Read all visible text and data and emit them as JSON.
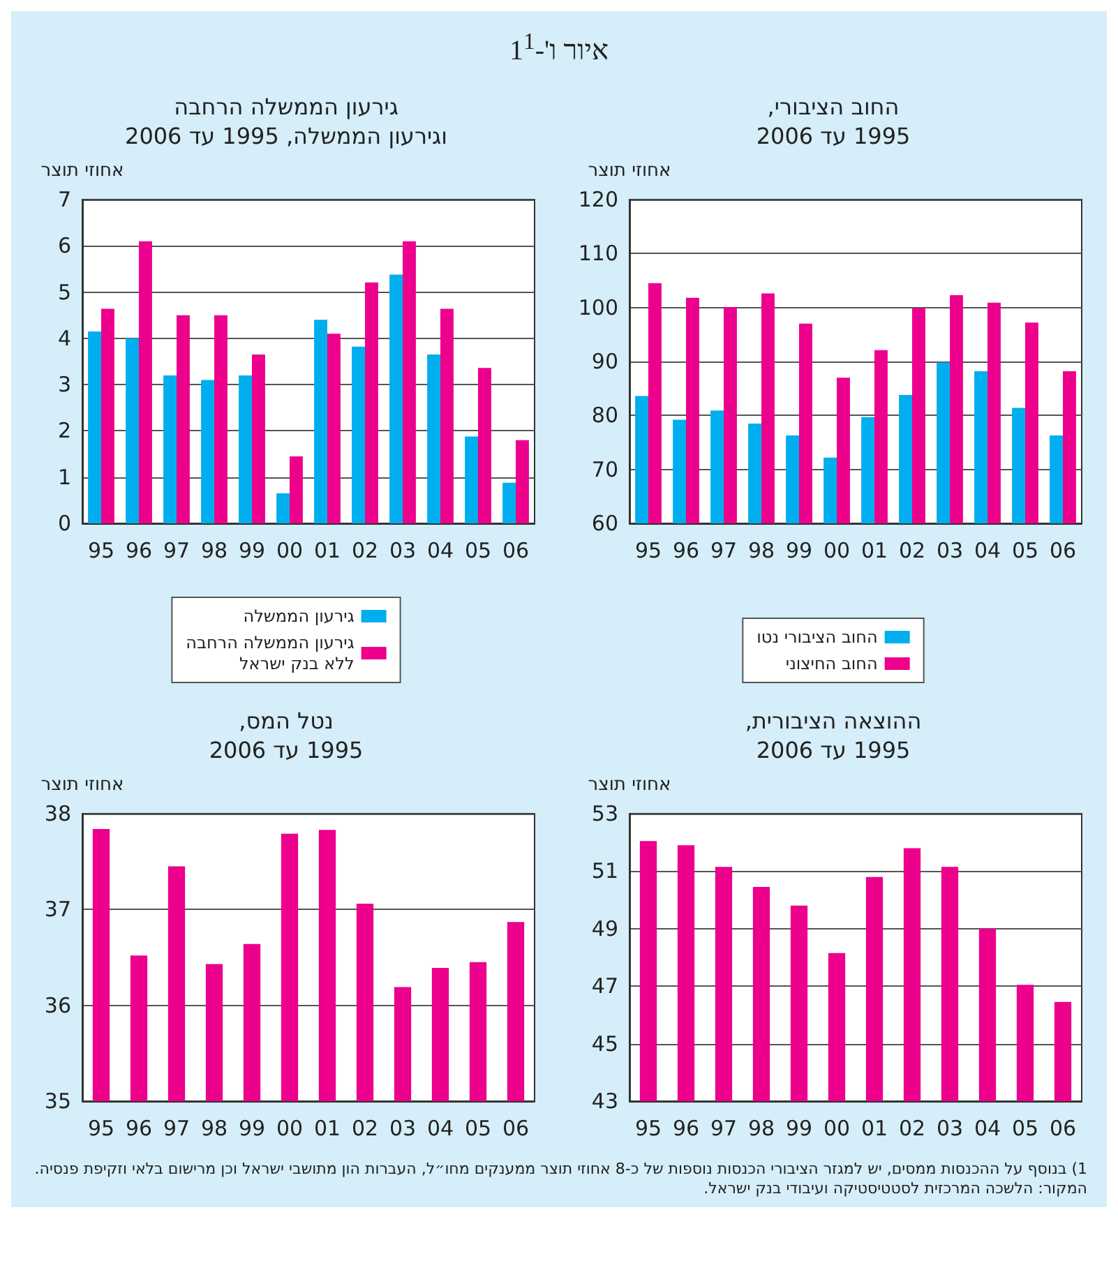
{
  "chart_data": [
    {
      "type": "bar",
      "title": "החוב הציבורי,\n1995 עד 2006",
      "ylabel": "אחוזי תוצר",
      "categories": [
        "95",
        "96",
        "97",
        "98",
        "99",
        "00",
        "01",
        "02",
        "03",
        "04",
        "05",
        "06"
      ],
      "series": [
        {
          "name": "החוב הציבורי נטו",
          "color": "#00aeef",
          "values": [
            83.6,
            79.2,
            80.9,
            78.5,
            76.3,
            72.2,
            79.7,
            83.8,
            89.8,
            88.2,
            81.4,
            76.3
          ]
        },
        {
          "name": "החוב החיצוני",
          "color": "#ec008c",
          "values": [
            104.5,
            101.8,
            100.1,
            102.6,
            97.0,
            87.0,
            92.1,
            99.9,
            102.3,
            100.9,
            97.2,
            88.2
          ]
        }
      ],
      "ylim": [
        60,
        120
      ],
      "yticks": [
        60,
        70,
        80,
        90,
        100,
        110,
        120
      ],
      "grid": "y",
      "legend": "bottom",
      "annotations": [
        "איור ו'-1$^{1}$",
        "1) בנוסף על ההכנסות ממסים, יש למגזר הציבורי הכנסות נוספות של כ-8 אחוזי תוצר ממענקים מחו״ל, העברות הון מתושבי ישראל וכן מרישום בלאי וזקיפת פנסיה.",
        "המקור: הלשכה המרכזית לסטטיסטיקה ועיבודי בנק ישראל."
      ]
    },
    {
      "type": "bar",
      "title": "גירעון הממשלה הרחבה\nוגירעון הממשלה, 1995 עד 2006",
      "ylabel": "אחוזי תוצר",
      "categories": [
        "95",
        "96",
        "97",
        "98",
        "99",
        "00",
        "01",
        "02",
        "03",
        "04",
        "05",
        "06"
      ],
      "series": [
        {
          "name": "גירעון הממשלה",
          "color": "#00aeef",
          "values": [
            4.15,
            4.0,
            3.2,
            3.1,
            3.2,
            0.65,
            4.4,
            3.82,
            5.38,
            3.65,
            1.88,
            0.88
          ]
        },
        {
          "name": "גירעון הממשלה הרחבה\nללא בנק ישראל",
          "color": "#ec008c",
          "values": [
            4.64,
            6.1,
            4.5,
            4.5,
            3.65,
            1.45,
            4.1,
            5.21,
            6.1,
            4.64,
            3.36,
            1.8
          ]
        }
      ],
      "ylim": [
        0,
        7
      ],
      "yticks": [
        0,
        1,
        2,
        3,
        4,
        5,
        6,
        7
      ],
      "grid": "y",
      "legend": "bottom"
    },
    {
      "type": "bar",
      "title": "ההוצאה הציבורית,\n1995 עד 2006",
      "ylabel": "אחוזי תוצר",
      "categories": [
        "95",
        "96",
        "97",
        "98",
        "99",
        "00",
        "01",
        "02",
        "03",
        "04",
        "05",
        "06"
      ],
      "color": "#ec008c",
      "values": [
        52.05,
        51.9,
        51.15,
        50.45,
        49.8,
        48.15,
        50.8,
        51.8,
        51.15,
        49.0,
        47.05,
        46.45
      ],
      "ylim": [
        43,
        53
      ],
      "yticks": [
        43,
        45,
        47,
        49,
        51,
        53
      ],
      "grid": "y"
    },
    {
      "type": "bar",
      "title": "נטל המס,\n1995 עד 2006",
      "ylabel": "אחוזי תוצר",
      "categories": [
        "95",
        "96",
        "97",
        "98",
        "99",
        "00",
        "01",
        "02",
        "03",
        "04",
        "05",
        "06"
      ],
      "color": "#ec008c",
      "values": [
        37.84,
        36.52,
        37.45,
        36.43,
        36.64,
        37.79,
        37.83,
        37.06,
        36.19,
        36.39,
        36.45,
        36.87
      ],
      "ylim": [
        35,
        38
      ],
      "yticks": [
        35,
        36,
        37,
        38
      ],
      "grid": "y"
    }
  ]
}
